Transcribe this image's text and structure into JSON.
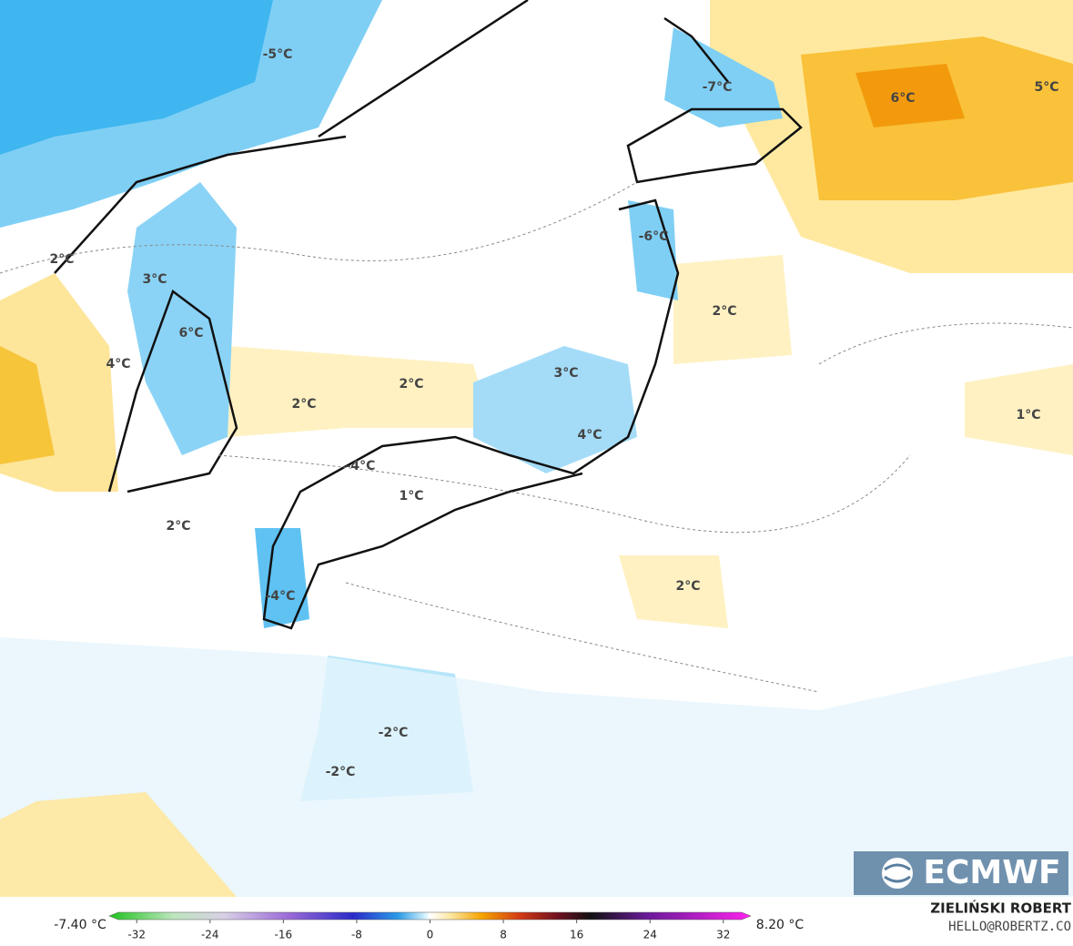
{
  "map": {
    "labels": [
      "-5°C",
      "-7°C",
      "6°C",
      "5°C",
      "2°C",
      "3°C",
      "-6°C",
      "6°C",
      "4°C",
      "2°C",
      "2°C",
      "2°C",
      "3°C",
      "1°C",
      "4°C",
      "-4°C",
      "1°C",
      "2°C",
      "2°C",
      "-4°C",
      "-2°C",
      "-2°C"
    ]
  },
  "colorbar": {
    "min_label": "-7.40 °C",
    "max_label": "8.20 °C",
    "xlim": [
      -35,
      35
    ],
    "ticks": [
      -32,
      -24,
      -16,
      -8,
      0,
      8,
      16,
      24,
      32
    ]
  },
  "credit": {
    "author": "ZIELIŃSKI ROBERT",
    "email": "HELLO@ROBERTZ.CO"
  },
  "logo": "ECMWF"
}
